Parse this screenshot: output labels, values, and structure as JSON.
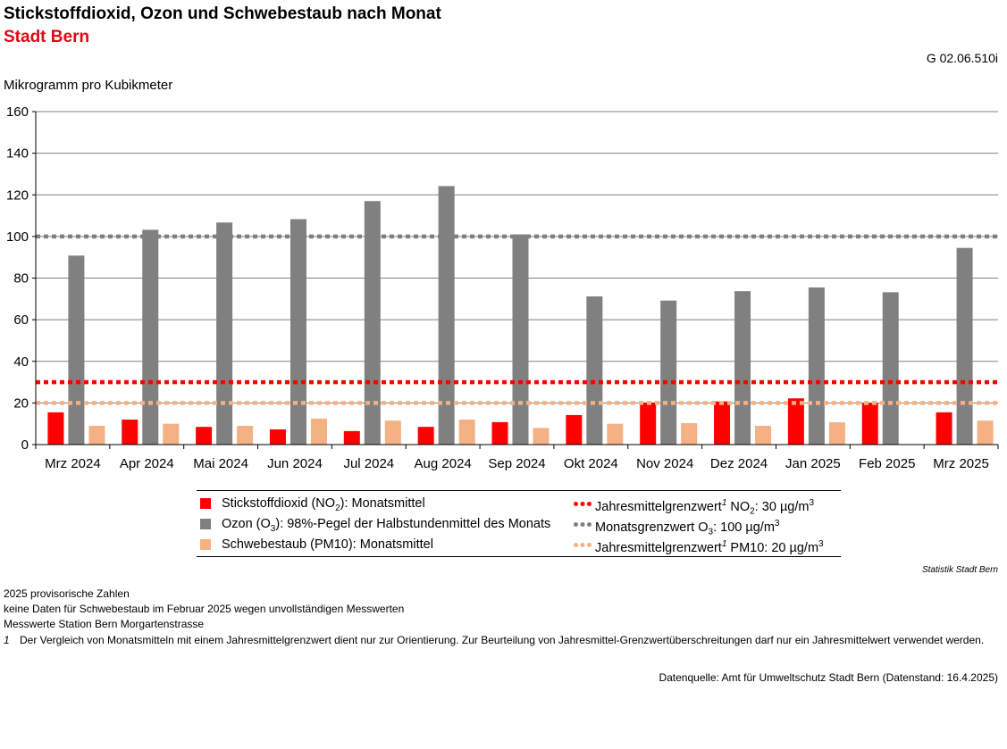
{
  "title": "Stickstoffdioxid, Ozon und Schwebestaub nach Monat",
  "subtitle": "Stadt Bern",
  "code": "G 02.06.510i",
  "source_small": "Statistik Stadt Bern",
  "legend": {
    "no2": {
      "text": "Stickstoffdioxid (NO",
      "sub": "2",
      "rest": "): Monatsmittel"
    },
    "o3": {
      "text": "Ozon (O",
      "sub": "3",
      "rest": "): 98%-Pegel der Halbstundenmittel des Monats"
    },
    "pm10": {
      "text": "Schwebestaub (PM10): Monatsmittel"
    },
    "line_no2": {
      "text": "Jahresmittelgrenzwert",
      "sup": "1",
      "rest1": " NO",
      "sub": "2",
      "rest2": ": 30 µg/m",
      "sup2": "3"
    },
    "line_o3": {
      "text": "Monatsgrenzwert O",
      "sub": "3",
      "rest": ": 100 µg/m",
      "sup": "3"
    },
    "line_pm10": {
      "text": "Jahresmittelgrenzwert",
      "sup": "1",
      "rest": " PM10: 20 µg/m",
      "sup2": "3"
    }
  },
  "notes": {
    "line1": "2025 provisorische Zahlen",
    "line2": "keine Daten für Schwebestaub im Februar 2025 wegen unvollständigen Messwerten",
    "line3": "Messwerte Station Bern Morgartenstrasse",
    "footnote_num": "1",
    "footnote_text": "Der Vergleich von Monatsmitteln mit einem Jahresmittelgrenzwert dient nur zur Orientierung. Zur Beurteilung von Jahresmittel-Grenzwertüberschreitungen darf nur ein Jahresmittelwert verwendet werden."
  },
  "datasource": "Datenquelle: Amt für Umweltschutz Stadt Bern (Datenstand: 16.4.2025)",
  "colors": {
    "no2": "#ff0000",
    "o3": "#808080",
    "pm10": "#f4b183",
    "grid": "#808080"
  },
  "chart_data": {
    "type": "bar",
    "ylabel": "Mikrogramm pro Kubikmeter",
    "ylim": [
      0,
      160
    ],
    "yticks": [
      0,
      20,
      40,
      60,
      80,
      100,
      120,
      140,
      160
    ],
    "grid": true,
    "categories": [
      "Mrz 2024",
      "Apr 2024",
      "Mai 2024",
      "Jun 2024",
      "Jul 2024",
      "Aug 2024",
      "Sep 2024",
      "Okt 2024",
      "Nov 2024",
      "Dez 2024",
      "Jan 2025",
      "Feb 2025",
      "Mrz 2025"
    ],
    "series": [
      {
        "key": "no2",
        "values": [
          15.5,
          12,
          8.5,
          7.3,
          6.5,
          8.5,
          10.8,
          14.2,
          20.2,
          20.7,
          22.2,
          20,
          15.5
        ]
      },
      {
        "key": "o3",
        "values": [
          90.8,
          103.2,
          106.7,
          108.3,
          117,
          124.2,
          101,
          71.2,
          69.2,
          73.7,
          75.5,
          73.2,
          94.5
        ]
      },
      {
        "key": "pm10",
        "values": [
          9,
          10,
          9,
          12.5,
          11.5,
          12,
          8,
          10,
          10.3,
          9,
          10.7,
          null,
          11.5
        ]
      }
    ],
    "reference_lines": [
      {
        "key": "line_no2",
        "value": 30
      },
      {
        "key": "line_o3",
        "value": 100
      },
      {
        "key": "line_pm10",
        "value": 20
      }
    ]
  }
}
